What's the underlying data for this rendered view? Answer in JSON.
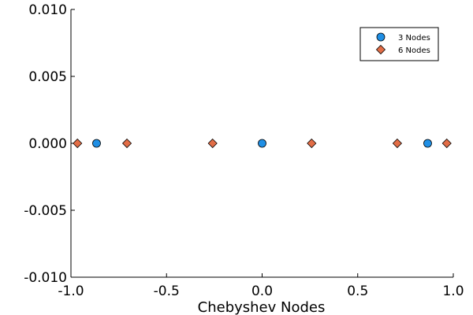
{
  "chart_data": {
    "type": "scatter",
    "title": "",
    "xlabel": "Chebyshev Nodes",
    "ylabel": "",
    "xlim": [
      -1.0,
      1.0
    ],
    "ylim": [
      -0.01,
      0.01
    ],
    "xticks": [
      -1.0,
      -0.5,
      0.0,
      0.5,
      1.0
    ],
    "xtick_labels": [
      "-1.0",
      "-0.5",
      "0.0",
      "0.5",
      "1.0"
    ],
    "yticks": [
      -0.01,
      -0.005,
      0.0,
      0.005,
      0.01
    ],
    "ytick_labels": [
      "-0.010",
      "-0.005",
      "0.000",
      "0.005",
      "0.010"
    ],
    "grid": false,
    "legend_position": "top-right",
    "series": [
      {
        "name": "3 Nodes",
        "marker": "circle",
        "color": "#1f8fe5",
        "x": [
          -0.866,
          0.0,
          0.866
        ],
        "y": [
          0,
          0,
          0
        ]
      },
      {
        "name": "6 Nodes",
        "marker": "diamond",
        "color": "#e26d46",
        "x": [
          -0.966,
          -0.707,
          -0.259,
          0.259,
          0.707,
          0.966
        ],
        "y": [
          0,
          0,
          0,
          0,
          0,
          0
        ]
      }
    ]
  }
}
